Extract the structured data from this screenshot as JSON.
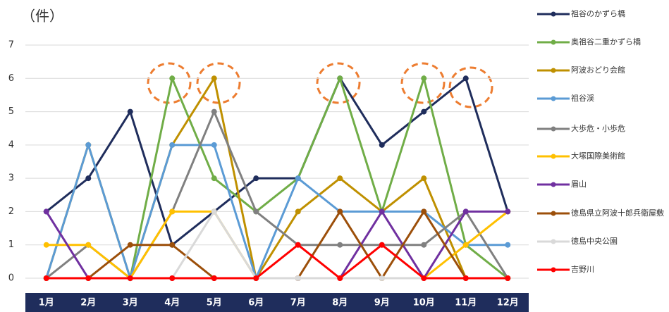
{
  "chart_data": {
    "type": "line",
    "title": "（件）",
    "categories": [
      "1月",
      "2月",
      "3月",
      "4月",
      "5月",
      "6月",
      "7月",
      "8月",
      "9月",
      "10月",
      "11月",
      "12月"
    ],
    "ylim": [
      0,
      7
    ],
    "yticks": [
      0,
      1,
      2,
      3,
      4,
      5,
      6,
      7
    ],
    "grid": true,
    "legend": "right",
    "series": [
      {
        "name": "祖谷のかずら橋",
        "color": "#1f2d5c",
        "values": [
          2,
          3,
          5,
          1,
          2,
          3,
          3,
          6,
          4,
          5,
          6,
          2
        ]
      },
      {
        "name": "奥祖谷二重かずら橋",
        "color": "#70ad47",
        "values": [
          0,
          0,
          0,
          6,
          3,
          2,
          3,
          6,
          2,
          6,
          1,
          0
        ]
      },
      {
        "name": "阿波おどり会館",
        "color": "#bf9000",
        "values": [
          0,
          4,
          0,
          4,
          6,
          0,
          2,
          3,
          2,
          3,
          0,
          0
        ]
      },
      {
        "name": "祖谷渓",
        "color": "#5b9bd5",
        "values": [
          0,
          4,
          0,
          4,
          4,
          0,
          3,
          2,
          2,
          2,
          1,
          1
        ]
      },
      {
        "name": "大歩危・小歩危",
        "color": "#808080",
        "values": [
          0,
          1,
          0,
          2,
          5,
          2,
          1,
          1,
          1,
          1,
          2,
          0
        ]
      },
      {
        "name": "大塚国際美術館",
        "color": "#ffc000",
        "values": [
          1,
          1,
          0,
          2,
          2,
          0,
          0,
          0,
          0,
          0,
          1,
          2
        ]
      },
      {
        "name": "眉山",
        "color": "#7030a0",
        "values": [
          2,
          0,
          0,
          0,
          0,
          0,
          0,
          0,
          2,
          0,
          2,
          2
        ]
      },
      {
        "name": "徳島県立阿波十郎兵衛屋敷",
        "color": "#9c4f0a",
        "values": [
          0,
          0,
          1,
          1,
          0,
          0,
          0,
          2,
          0,
          2,
          0,
          0
        ]
      },
      {
        "name": "徳島中央公園",
        "color": "#d9d9d9",
        "values": [
          0,
          0,
          0,
          0,
          2,
          0,
          0,
          0,
          0,
          0,
          0,
          0
        ]
      },
      {
        "name": "吉野川",
        "color": "#ff0000",
        "values": [
          0,
          0,
          0,
          0,
          0,
          0,
          1,
          0,
          1,
          0,
          0,
          0
        ]
      }
    ]
  }
}
